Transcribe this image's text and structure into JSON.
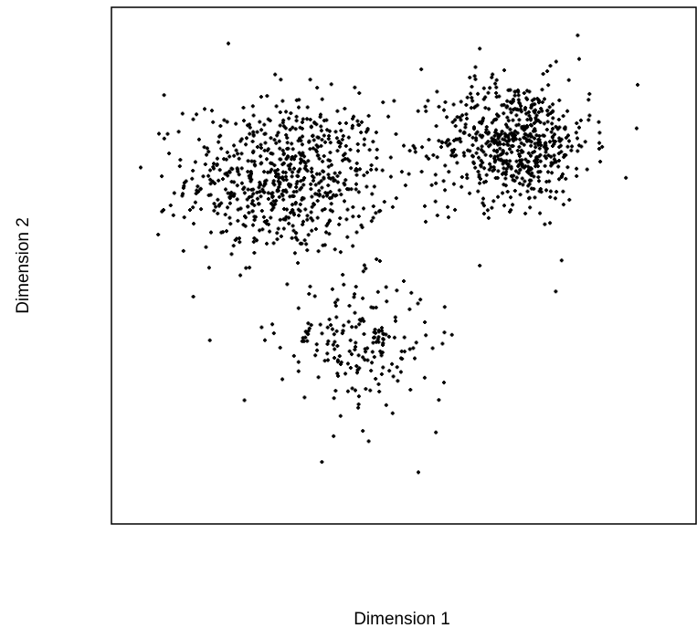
{
  "chart_data": {
    "type": "scatter",
    "title": "",
    "xlabel": "Dimension 1",
    "ylabel": "Dimension 2",
    "axes_ticks_shown": false,
    "grid": false,
    "legend": "none",
    "point_color": "#000000",
    "xlim": [
      0,
      1
    ],
    "ylim": [
      0,
      1
    ],
    "clusters": [
      {
        "label": "upper-left",
        "center": [
          0.3,
          0.67
        ],
        "spread": [
          0.085,
          0.075
        ],
        "count": 700
      },
      {
        "label": "upper-right",
        "center": [
          0.69,
          0.74
        ],
        "spread": [
          0.065,
          0.06
        ],
        "count": 620
      },
      {
        "label": "lower-middle",
        "center": [
          0.42,
          0.35
        ],
        "spread": [
          0.065,
          0.06
        ],
        "count": 190
      }
    ],
    "outliers": [
      [
        0.2,
        0.93
      ],
      [
        0.28,
        0.87
      ],
      [
        0.34,
        0.86
      ],
      [
        0.9,
        0.85
      ],
      [
        0.44,
        0.79
      ],
      [
        0.53,
        0.88
      ],
      [
        0.63,
        0.92
      ],
      [
        0.57,
        0.42
      ],
      [
        0.63,
        0.5
      ],
      [
        0.77,
        0.51
      ],
      [
        0.88,
        0.67
      ],
      [
        0.76,
        0.45
      ],
      [
        0.47,
        0.23
      ],
      [
        0.43,
        0.18
      ],
      [
        0.38,
        0.17
      ],
      [
        0.44,
        0.16
      ],
      [
        0.56,
        0.24
      ],
      [
        0.5,
        0.47
      ],
      [
        0.05,
        0.69
      ],
      [
        0.09,
        0.83
      ],
      [
        0.52,
        0.72
      ],
      [
        0.14,
        0.44
      ],
      [
        0.36,
        0.12
      ],
      [
        0.525,
        0.1
      ],
      [
        0.08,
        0.56
      ],
      [
        0.8,
        0.9
      ]
    ]
  }
}
